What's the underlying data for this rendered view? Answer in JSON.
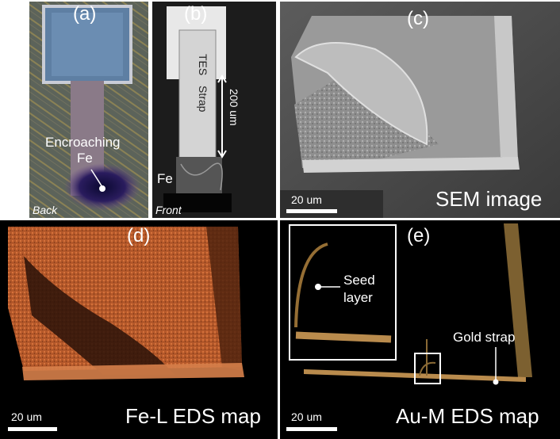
{
  "panels": {
    "a": {
      "label": "(a)",
      "side": "Back",
      "annotation_line1": "Encroaching",
      "annotation_line2": "Fe"
    },
    "b": {
      "label": "(b)",
      "side": "Front",
      "tes": "TES",
      "strap": "Strap",
      "dimension": "200 um",
      "fe": "Fe"
    },
    "c": {
      "label": "(c)",
      "caption": "SEM image",
      "scale": "20 um"
    },
    "d": {
      "label": "(d)",
      "caption": "Fe-L EDS map",
      "scale": "20 um"
    },
    "e": {
      "label": "(e)",
      "caption": "Au-M EDS map",
      "scale": "20 um",
      "inset_line1": "Seed",
      "inset_line2": "layer",
      "annotation": "Gold strap"
    }
  },
  "colors": {
    "fe_map": "#c8622f",
    "au_map": "#d9a35a",
    "background": "#000000",
    "label": "#ffffff"
  }
}
